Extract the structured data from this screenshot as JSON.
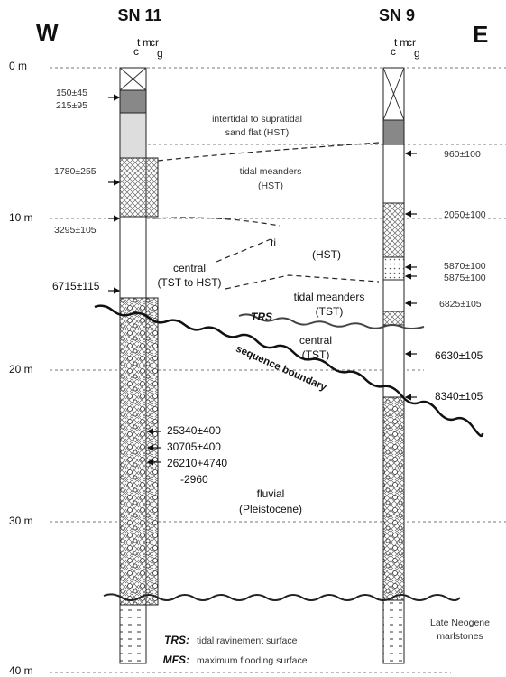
{
  "header": {
    "west": "W",
    "east": "E"
  },
  "columns": [
    {
      "name": "SN 11"
    },
    {
      "name": "SN 9"
    }
  ],
  "grain_scale": [
    "c",
    "t",
    "m",
    "cr",
    "g"
  ],
  "depth_labels": [
    "0 m",
    "10 m",
    "20 m",
    "30 m",
    "40 m"
  ],
  "left_dates": [
    "150±45",
    "215±95",
    "1780±255",
    "3295±105",
    "6715±115",
    "25340±400",
    "30705±400",
    "26210+4740",
    "-2960"
  ],
  "right_dates": [
    "960±100",
    "2050±100",
    "5870±100",
    "5875±100",
    "6825±105",
    "6630±105",
    "8340±105"
  ],
  "facies": [
    {
      "lines": [
        "intertidal to supratidal",
        "sand flat (HST)"
      ]
    },
    {
      "lines": [
        "tidal meanders",
        "(HST)"
      ]
    },
    {
      "lines": [
        "ti"
      ]
    },
    {
      "lines": [
        "(HST)"
      ]
    },
    {
      "lines": [
        "central",
        "(TST to HST)"
      ]
    },
    {
      "lines": [
        "tidal meanders",
        "(TST)"
      ]
    },
    {
      "lines": [
        "central",
        "(TST)"
      ]
    },
    {
      "lines": [
        "fluvial",
        "(Pleistocene)"
      ]
    },
    {
      "lines": [
        "Late Neogene",
        "marlstones"
      ]
    }
  ],
  "surfaces": {
    "trs": "TRS",
    "sequence_boundary": "sequence boundary"
  },
  "legend": [
    {
      "abbr": "TRS:",
      "text": "tidal ravinement surface"
    },
    {
      "abbr": "MFS:",
      "text": "maximum flooding surface"
    }
  ]
}
